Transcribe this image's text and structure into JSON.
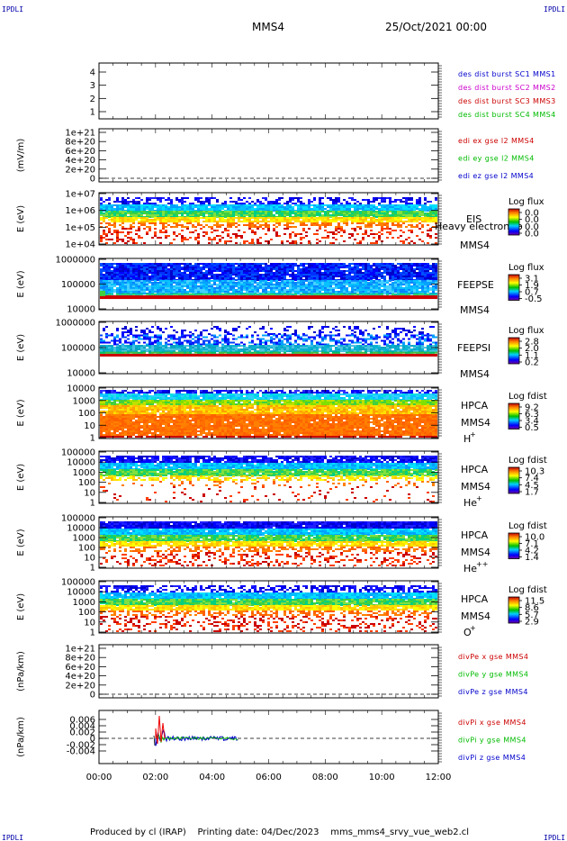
{
  "corner_label": "IPDLI",
  "header": {
    "spacecraft": "MMS4",
    "datetime": "25/Oct/2021 00:00"
  },
  "footer": {
    "produced_by": "Produced by cl (IRAP)",
    "printing_date": "Printing date: 04/Dec/2023",
    "filename": "mms_mms4_srvy_vue_web2.cl"
  },
  "x_axis": {
    "ticks": [
      "00:00",
      "02:00",
      "04:00",
      "06:00",
      "08:00",
      "10:00",
      "12:00"
    ]
  },
  "chart_data": [
    {
      "id": "p1",
      "type": "line",
      "ylabel": "",
      "yticks": [
        "1",
        "2",
        "3",
        "4"
      ],
      "legend": [
        {
          "text": "des dist burst SC1 MMS1",
          "color": "#0000cc"
        },
        {
          "text": "des dist burst SC2 MMS2",
          "color": "#cc00cc"
        },
        {
          "text": "des dist burst SC3 MMS3",
          "color": "#cc0000"
        },
        {
          "text": "des dist burst SC4 MMS4",
          "color": "#00bb00"
        }
      ]
    },
    {
      "id": "p2",
      "type": "line",
      "ylabel": "(mV/m)",
      "yticks": [
        "0",
        "2e+20",
        "4e+20",
        "6e+20",
        "8e+20",
        "1e+21"
      ],
      "legend": [
        {
          "text": "edi ex gse l2 MMS4",
          "color": "#cc0000"
        },
        {
          "text": "edi ey gse l2 MMS4",
          "color": "#00bb00"
        },
        {
          "text": "edi ez gse l2 MMS4",
          "color": "#0000cc"
        }
      ]
    },
    {
      "id": "p3",
      "type": "heatmap",
      "ylabel": "E (eV)",
      "yticks": [
        "1e+04",
        "1e+05",
        "1e+06",
        "1e+07"
      ],
      "label_lines": [
        "EIS",
        "MMS4"
      ],
      "overlay_text": "Heavy electron to",
      "colorbar": {
        "title": "Log flux",
        "ticks": [
          "0.0",
          "0.0",
          "0.0",
          "0.0"
        ]
      }
    },
    {
      "id": "p4",
      "type": "heatmap",
      "ylabel": "E (eV)",
      "yticks": [
        "10000",
        "100000",
        "1000000"
      ],
      "label_lines": [
        "FEEPSE",
        "MMS4"
      ],
      "colorbar": {
        "title": "Log flux",
        "ticks": [
          "3.1",
          "1.9",
          "0.7",
          "-0.5"
        ]
      }
    },
    {
      "id": "p5",
      "type": "heatmap",
      "ylabel": "E (eV)",
      "yticks": [
        "10000",
        "100000",
        "1000000"
      ],
      "label_lines": [
        "FEEPSI",
        "MMS4"
      ],
      "colorbar": {
        "title": "Log flux",
        "ticks": [
          "2.8",
          "2.0",
          "1.1",
          "0.2"
        ]
      }
    },
    {
      "id": "p6",
      "type": "heatmap",
      "ylabel": "E (eV)",
      "yticks": [
        "1",
        "10",
        "100",
        "1000",
        "10000"
      ],
      "label_lines": [
        "HPCA",
        "MMS4"
      ],
      "species": "H",
      "species_sup": "+",
      "colorbar": {
        "title": "Log fdist",
        "ticks": [
          "9.2",
          "6.3",
          "3.4",
          "0.5"
        ]
      }
    },
    {
      "id": "p7",
      "type": "heatmap",
      "ylabel": "E (eV)",
      "yticks": [
        "1",
        "10",
        "100",
        "1000",
        "10000",
        "100000"
      ],
      "label_lines": [
        "HPCA",
        "MMS4"
      ],
      "species": "He",
      "species_sup": "+",
      "colorbar": {
        "title": "Log fdist",
        "ticks": [
          "10.3",
          "7.4",
          "4.5",
          "1.7"
        ]
      }
    },
    {
      "id": "p8",
      "type": "heatmap",
      "ylabel": "E (eV)",
      "yticks": [
        "1",
        "10",
        "100",
        "1000",
        "10000",
        "100000"
      ],
      "label_lines": [
        "HPCA",
        "MMS4"
      ],
      "species": "He",
      "species_sup": "++",
      "colorbar": {
        "title": "Log fdist",
        "ticks": [
          "10.0",
          "7.1",
          "4.2",
          "1.4"
        ]
      }
    },
    {
      "id": "p9",
      "type": "heatmap",
      "ylabel": "E (eV)",
      "yticks": [
        "1",
        "10",
        "100",
        "1000",
        "10000",
        "100000"
      ],
      "label_lines": [
        "HPCA",
        "MMS4"
      ],
      "species": "O",
      "species_sup": "+",
      "colorbar": {
        "title": "Log fdist",
        "ticks": [
          "11.5",
          "8.6",
          "5.7",
          "2.9"
        ]
      }
    },
    {
      "id": "p10",
      "type": "line",
      "ylabel": "(nPa/km)",
      "yticks": [
        "0",
        "2e+20",
        "4e+20",
        "6e+20",
        "8e+20",
        "1e+21"
      ],
      "legend": [
        {
          "text": "divPe x gse MMS4",
          "color": "#cc0000"
        },
        {
          "text": "divPe y gse MMS4",
          "color": "#00bb00"
        },
        {
          "text": "divPe z gse MMS4",
          "color": "#0000cc"
        }
      ]
    },
    {
      "id": "p11",
      "type": "line",
      "ylabel": "(nPa/km)",
      "yticks": [
        "-0.004",
        "-0.002",
        "0",
        "0.002",
        "0.004",
        "0.006"
      ],
      "legend": [
        {
          "text": "divPi x gse MMS4",
          "color": "#cc0000"
        },
        {
          "text": "divPi y gse MMS4",
          "color": "#00bb00"
        },
        {
          "text": "divPi z gse MMS4",
          "color": "#0000cc"
        }
      ]
    }
  ]
}
